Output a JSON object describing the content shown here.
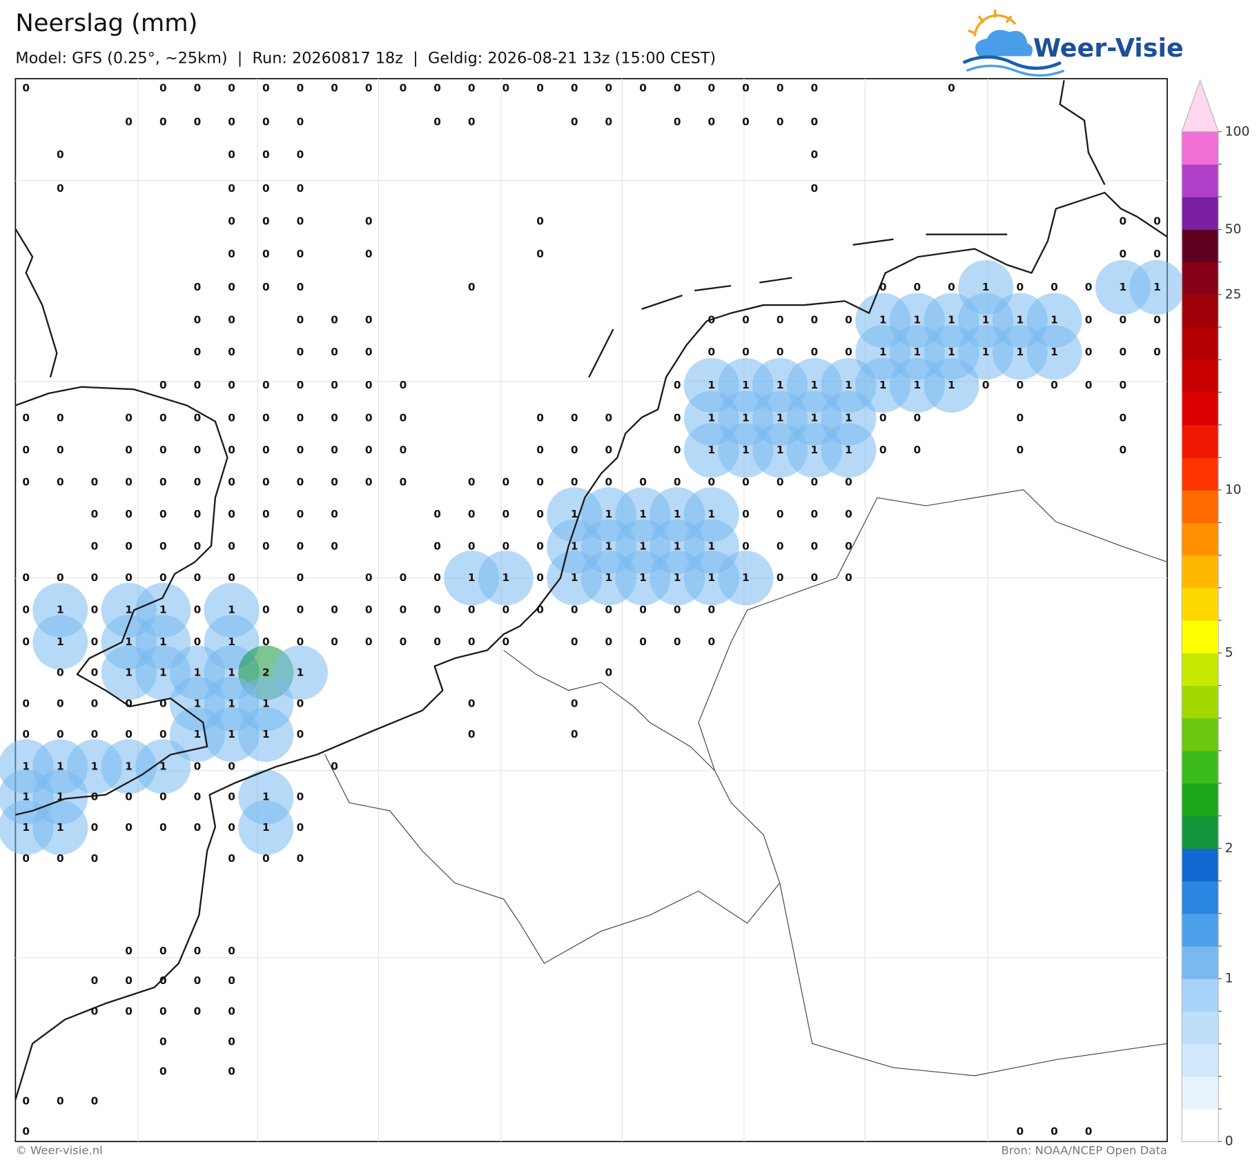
{
  "header": {
    "title": "Neerslag (mm)",
    "subtitle": "Model: GFS (0.25°, ~25km)  |  Run: 20260817 18z  |  Geldig: 2026-08-21 13z (15:00 CEST)",
    "logo": "Weer-Visie"
  },
  "footer": {
    "copyright": "© Weer-visie.nl",
    "source": "Bron: NOAA/NCEP Open Data"
  },
  "chart_data": {
    "type": "grid-map",
    "grid": [
      [
        0,
        null,
        null,
        null,
        0,
        0,
        0,
        0,
        0,
        0,
        0,
        0,
        0,
        0,
        0,
        0,
        0,
        0,
        0,
        0,
        0,
        0,
        0,
        0,
        null,
        null,
        null,
        0,
        null,
        null,
        null,
        null,
        null,
        null
      ],
      [
        null,
        null,
        null,
        0,
        0,
        0,
        0,
        0,
        0,
        null,
        null,
        null,
        0,
        0,
        null,
        null,
        0,
        0,
        null,
        0,
        0,
        0,
        0,
        0,
        null,
        null,
        null,
        null,
        null,
        null,
        null,
        null,
        null,
        null
      ],
      [
        null,
        0,
        null,
        null,
        null,
        null,
        0,
        0,
        0,
        null,
        null,
        null,
        null,
        null,
        null,
        null,
        null,
        null,
        null,
        null,
        null,
        null,
        null,
        0,
        null,
        null,
        null,
        null,
        null,
        null,
        null,
        null,
        null,
        null
      ],
      [
        null,
        0,
        null,
        null,
        null,
        null,
        0,
        0,
        0,
        null,
        null,
        null,
        null,
        null,
        null,
        null,
        null,
        null,
        null,
        null,
        null,
        null,
        null,
        0,
        null,
        null,
        null,
        null,
        null,
        null,
        null,
        null,
        null,
        null
      ],
      [
        null,
        null,
        null,
        null,
        null,
        null,
        0,
        0,
        0,
        null,
        0,
        null,
        null,
        null,
        null,
        0,
        null,
        null,
        null,
        null,
        null,
        null,
        null,
        null,
        null,
        null,
        null,
        null,
        null,
        null,
        null,
        null,
        0,
        0
      ],
      [
        null,
        null,
        null,
        null,
        null,
        null,
        0,
        0,
        0,
        null,
        0,
        null,
        null,
        null,
        null,
        0,
        null,
        null,
        null,
        null,
        null,
        null,
        null,
        null,
        null,
        null,
        null,
        null,
        null,
        null,
        null,
        null,
        0,
        0
      ],
      [
        null,
        null,
        null,
        null,
        null,
        0,
        0,
        0,
        0,
        null,
        null,
        null,
        null,
        0,
        null,
        null,
        null,
        null,
        null,
        null,
        null,
        null,
        null,
        null,
        null,
        0,
        0,
        0,
        1,
        0,
        0,
        0,
        1,
        1
      ],
      [
        null,
        null,
        null,
        null,
        null,
        0,
        0,
        null,
        0,
        0,
        0,
        null,
        null,
        null,
        null,
        null,
        null,
        null,
        null,
        null,
        0,
        0,
        0,
        0,
        0,
        1,
        1,
        1,
        1,
        1,
        1,
        0,
        0,
        0
      ],
      [
        null,
        null,
        null,
        null,
        null,
        0,
        0,
        null,
        0,
        0,
        0,
        null,
        null,
        null,
        null,
        null,
        null,
        null,
        null,
        null,
        0,
        0,
        0,
        0,
        0,
        1,
        1,
        1,
        1,
        1,
        1,
        0,
        0,
        0
      ],
      [
        null,
        null,
        null,
        null,
        0,
        0,
        0,
        0,
        0,
        0,
        0,
        0,
        null,
        null,
        null,
        null,
        null,
        null,
        null,
        0,
        1,
        1,
        1,
        1,
        1,
        1,
        1,
        1,
        0,
        0,
        0,
        0,
        0,
        null
      ],
      [
        0,
        0,
        null,
        0,
        0,
        0,
        0,
        0,
        0,
        0,
        0,
        0,
        null,
        null,
        null,
        0,
        0,
        0,
        null,
        0,
        1,
        1,
        1,
        1,
        1,
        0,
        0,
        null,
        null,
        0,
        null,
        null,
        0,
        null
      ],
      [
        0,
        0,
        null,
        0,
        0,
        0,
        0,
        0,
        0,
        0,
        0,
        0,
        null,
        null,
        null,
        0,
        0,
        0,
        null,
        0,
        1,
        1,
        1,
        1,
        1,
        0,
        0,
        null,
        null,
        0,
        null,
        null,
        0,
        null
      ],
      [
        0,
        0,
        0,
        0,
        0,
        0,
        0,
        0,
        0,
        0,
        0,
        0,
        null,
        0,
        0,
        0,
        0,
        0,
        0,
        0,
        0,
        0,
        0,
        0,
        0,
        null,
        null,
        null,
        null,
        null,
        null,
        null,
        null,
        null
      ],
      [
        null,
        null,
        0,
        0,
        0,
        0,
        0,
        0,
        0,
        0,
        null,
        null,
        0,
        0,
        0,
        0,
        1,
        1,
        1,
        1,
        1,
        0,
        0,
        0,
        0,
        null,
        null,
        null,
        null,
        null,
        null,
        null,
        null,
        null
      ],
      [
        null,
        null,
        0,
        0,
        0,
        0,
        0,
        0,
        0,
        0,
        null,
        null,
        0,
        0,
        0,
        0,
        1,
        1,
        1,
        1,
        1,
        0,
        0,
        0,
        0,
        null,
        null,
        null,
        null,
        null,
        null,
        null,
        null,
        null
      ],
      [
        0,
        0,
        0,
        0,
        0,
        0,
        0,
        null,
        0,
        null,
        0,
        0,
        0,
        1,
        1,
        0,
        1,
        1,
        1,
        1,
        1,
        1,
        0,
        0,
        0,
        null,
        null,
        null,
        null,
        null,
        null,
        null,
        null,
        null
      ],
      [
        0,
        1,
        0,
        1,
        1,
        0,
        1,
        0,
        0,
        0,
        0,
        0,
        0,
        0,
        0,
        0,
        0,
        0,
        0,
        0,
        0,
        null,
        null,
        null,
        null,
        null,
        null,
        null,
        null,
        null,
        null,
        null,
        null,
        null
      ],
      [
        0,
        1,
        0,
        1,
        1,
        0,
        1,
        0,
        0,
        0,
        0,
        0,
        0,
        0,
        0,
        null,
        0,
        0,
        0,
        0,
        0,
        null,
        null,
        null,
        null,
        null,
        null,
        null,
        null,
        null,
        null,
        null,
        null,
        null
      ],
      [
        null,
        0,
        0,
        1,
        1,
        1,
        1,
        2,
        1,
        null,
        null,
        null,
        null,
        null,
        null,
        null,
        null,
        0,
        null,
        null,
        null,
        null,
        null,
        null,
        null,
        null,
        null,
        null,
        null,
        null,
        null,
        null,
        null,
        null
      ],
      [
        0,
        0,
        0,
        0,
        0,
        1,
        1,
        1,
        0,
        null,
        null,
        null,
        null,
        0,
        null,
        null,
        0,
        null,
        null,
        null,
        null,
        null,
        null,
        null,
        null,
        null,
        null,
        null,
        null,
        null,
        null,
        null,
        null,
        null
      ],
      [
        0,
        0,
        0,
        0,
        0,
        1,
        1,
        1,
        0,
        null,
        null,
        null,
        null,
        0,
        null,
        null,
        0,
        null,
        null,
        null,
        null,
        null,
        null,
        null,
        null,
        null,
        null,
        null,
        null,
        null,
        null,
        null,
        null,
        null
      ],
      [
        1,
        1,
        1,
        1,
        1,
        0,
        0,
        null,
        null,
        0,
        null,
        null,
        null,
        null,
        null,
        null,
        null,
        null,
        null,
        null,
        null,
        null,
        null,
        null,
        null,
        null,
        null,
        null,
        null,
        null,
        null,
        null,
        null,
        null
      ],
      [
        1,
        1,
        0,
        0,
        0,
        0,
        0,
        1,
        0,
        null,
        null,
        null,
        null,
        null,
        null,
        null,
        null,
        null,
        null,
        null,
        null,
        null,
        null,
        null,
        null,
        null,
        null,
        null,
        null,
        null,
        null,
        null,
        null,
        null
      ],
      [
        1,
        1,
        0,
        0,
        0,
        0,
        0,
        1,
        0,
        null,
        null,
        null,
        null,
        null,
        null,
        null,
        null,
        null,
        null,
        null,
        null,
        null,
        null,
        null,
        null,
        null,
        null,
        null,
        null,
        null,
        null,
        null,
        null,
        null
      ],
      [
        0,
        0,
        0,
        null,
        null,
        null,
        0,
        0,
        0,
        null,
        null,
        null,
        null,
        null,
        null,
        null,
        null,
        null,
        null,
        null,
        null,
        null,
        null,
        null,
        null,
        null,
        null,
        null,
        null,
        null,
        null,
        null,
        null,
        null
      ],
      [
        null,
        null,
        null,
        null,
        null,
        null,
        null,
        null,
        null,
        null,
        null,
        null,
        null,
        null,
        null,
        null,
        null,
        null,
        null,
        null,
        null,
        null,
        null,
        null,
        null,
        null,
        null,
        null,
        null,
        null,
        null,
        null,
        null,
        null
      ],
      [
        null,
        null,
        null,
        null,
        null,
        null,
        null,
        null,
        null,
        null,
        null,
        null,
        null,
        null,
        null,
        null,
        null,
        null,
        null,
        null,
        null,
        null,
        null,
        null,
        null,
        null,
        null,
        null,
        null,
        null,
        null,
        null,
        null,
        null
      ],
      [
        null,
        null,
        null,
        0,
        0,
        0,
        0,
        null,
        null,
        null,
        null,
        null,
        null,
        null,
        null,
        null,
        null,
        null,
        null,
        null,
        null,
        null,
        null,
        null,
        null,
        null,
        null,
        null,
        null,
        null,
        null,
        null,
        null,
        null
      ],
      [
        null,
        null,
        0,
        0,
        0,
        0,
        0,
        null,
        null,
        null,
        null,
        null,
        null,
        null,
        null,
        null,
        null,
        null,
        null,
        null,
        null,
        null,
        null,
        null,
        null,
        null,
        null,
        null,
        null,
        null,
        null,
        null,
        null,
        null
      ],
      [
        null,
        null,
        0,
        0,
        0,
        0,
        0,
        null,
        null,
        null,
        null,
        null,
        null,
        null,
        null,
        null,
        null,
        null,
        null,
        null,
        null,
        null,
        null,
        null,
        null,
        null,
        null,
        null,
        null,
        null,
        null,
        null,
        null,
        null
      ],
      [
        null,
        null,
        null,
        null,
        0,
        null,
        0,
        null,
        null,
        null,
        null,
        null,
        null,
        null,
        null,
        null,
        null,
        null,
        null,
        null,
        null,
        null,
        null,
        null,
        null,
        null,
        null,
        null,
        null,
        null,
        null,
        null,
        null,
        null
      ],
      [
        null,
        null,
        null,
        null,
        0,
        null,
        0,
        null,
        null,
        null,
        null,
        null,
        null,
        null,
        null,
        null,
        null,
        null,
        null,
        null,
        null,
        null,
        null,
        null,
        null,
        null,
        null,
        null,
        null,
        null,
        null,
        null,
        null,
        null
      ],
      [
        0,
        0,
        0,
        null,
        null,
        null,
        null,
        null,
        null,
        null,
        null,
        null,
        null,
        null,
        null,
        null,
        null,
        null,
        null,
        null,
        null,
        null,
        null,
        null,
        null,
        null,
        null,
        null,
        null,
        null,
        null,
        null,
        null,
        null
      ],
      [
        0,
        null,
        null,
        null,
        null,
        null,
        null,
        null,
        null,
        null,
        null,
        null,
        null,
        null,
        null,
        null,
        null,
        null,
        null,
        null,
        null,
        null,
        null,
        null,
        null,
        null,
        null,
        null,
        null,
        0,
        0,
        0,
        null,
        null
      ]
    ],
    "colorbar": {
      "levels": [
        0,
        0.1,
        0.25,
        0.5,
        0.75,
        1,
        1.25,
        1.5,
        1.75,
        2,
        2.5,
        3,
        3.5,
        4,
        4.5,
        5,
        6,
        7,
        8,
        9,
        10,
        12.5,
        15,
        17.5,
        20,
        22.5,
        25,
        35,
        50,
        65,
        80,
        100
      ],
      "colors": [
        "#ffffff",
        "#e8f3fd",
        "#d2e8fb",
        "#bedff9",
        "#a8d2f7",
        "#7ab9f0",
        "#4ca0ea",
        "#2a86e0",
        "#1168d0",
        "#14963c",
        "#1aa81a",
        "#3cbc1a",
        "#6cc80e",
        "#a0d800",
        "#c8ea00",
        "#ffff00",
        "#ffd800",
        "#ffb800",
        "#ff9000",
        "#ff6a00",
        "#ff3300",
        "#f01800",
        "#dd0000",
        "#c80000",
        "#b40000",
        "#a00008",
        "#880018",
        "#600020",
        "#7a1fa0",
        "#b040c8",
        "#f070d8"
      ],
      "extend_color": "#ffd8f0",
      "ticks": [
        0,
        1,
        2,
        5,
        10,
        25,
        50,
        100
      ]
    }
  }
}
